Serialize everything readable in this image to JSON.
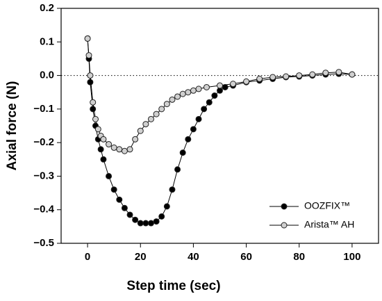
{
  "chart_data": {
    "type": "scatter",
    "xlabel": "Step time (sec)",
    "ylabel": "Axial force (N)",
    "xlim": [
      -10,
      110
    ],
    "xticks": [
      0,
      20,
      40,
      60,
      80,
      100
    ],
    "ylim": [
      -0.5,
      0.2
    ],
    "yticks": [
      {
        "value": -0.5,
        "label": "−0.5"
      },
      {
        "value": -0.4,
        "label": "−0.4"
      },
      {
        "value": -0.3,
        "label": "−0.3"
      },
      {
        "value": -0.2,
        "label": "−0.2"
      },
      {
        "value": -0.1,
        "label": "−0.1"
      },
      {
        "value": 0,
        "label": "0.0"
      },
      0.1,
      0.2
    ],
    "reference_line": 0,
    "legend": "lower right",
    "series": [
      {
        "name": "OOZFIX™",
        "color": "#000000",
        "x": [
          0,
          0.5,
          1,
          2,
          3,
          4,
          5,
          6,
          8,
          10,
          12,
          14,
          16,
          18,
          20,
          22,
          24,
          26,
          28,
          30,
          32,
          34,
          36,
          38,
          40,
          42,
          44,
          46,
          48,
          50,
          52,
          55,
          60,
          65,
          70,
          75,
          80,
          85,
          90,
          95,
          100
        ],
        "values": [
          0.11,
          0.05,
          -0.02,
          -0.1,
          -0.15,
          -0.19,
          -0.22,
          -0.25,
          -0.3,
          -0.34,
          -0.37,
          -0.395,
          -0.415,
          -0.43,
          -0.44,
          -0.44,
          -0.44,
          -0.435,
          -0.42,
          -0.39,
          -0.34,
          -0.28,
          -0.23,
          -0.19,
          -0.16,
          -0.13,
          -0.1,
          -0.08,
          -0.06,
          -0.045,
          -0.035,
          -0.03,
          -0.02,
          -0.015,
          -0.01,
          -0.005,
          -0.003,
          0,
          0.003,
          0.005,
          0.003
        ]
      },
      {
        "name": "Arista™ AH",
        "color": "#d0d0d0",
        "x": [
          0,
          0.5,
          1,
          2,
          3,
          4,
          5,
          6,
          8,
          10,
          12,
          14,
          16,
          18,
          20,
          22,
          24,
          26,
          28,
          30,
          32,
          34,
          36,
          38,
          40,
          42,
          45,
          50,
          55,
          60,
          65,
          70,
          75,
          80,
          85,
          90,
          95,
          100
        ],
        "values": [
          0.11,
          0.06,
          0,
          -0.08,
          -0.13,
          -0.16,
          -0.18,
          -0.19,
          -0.205,
          -0.215,
          -0.22,
          -0.225,
          -0.22,
          -0.19,
          -0.165,
          -0.145,
          -0.13,
          -0.115,
          -0.1,
          -0.085,
          -0.072,
          -0.063,
          -0.055,
          -0.05,
          -0.045,
          -0.04,
          -0.035,
          -0.03,
          -0.025,
          -0.018,
          -0.01,
          -0.005,
          -0.003,
          0,
          0.003,
          0.008,
          0.01,
          0.003
        ]
      }
    ]
  }
}
